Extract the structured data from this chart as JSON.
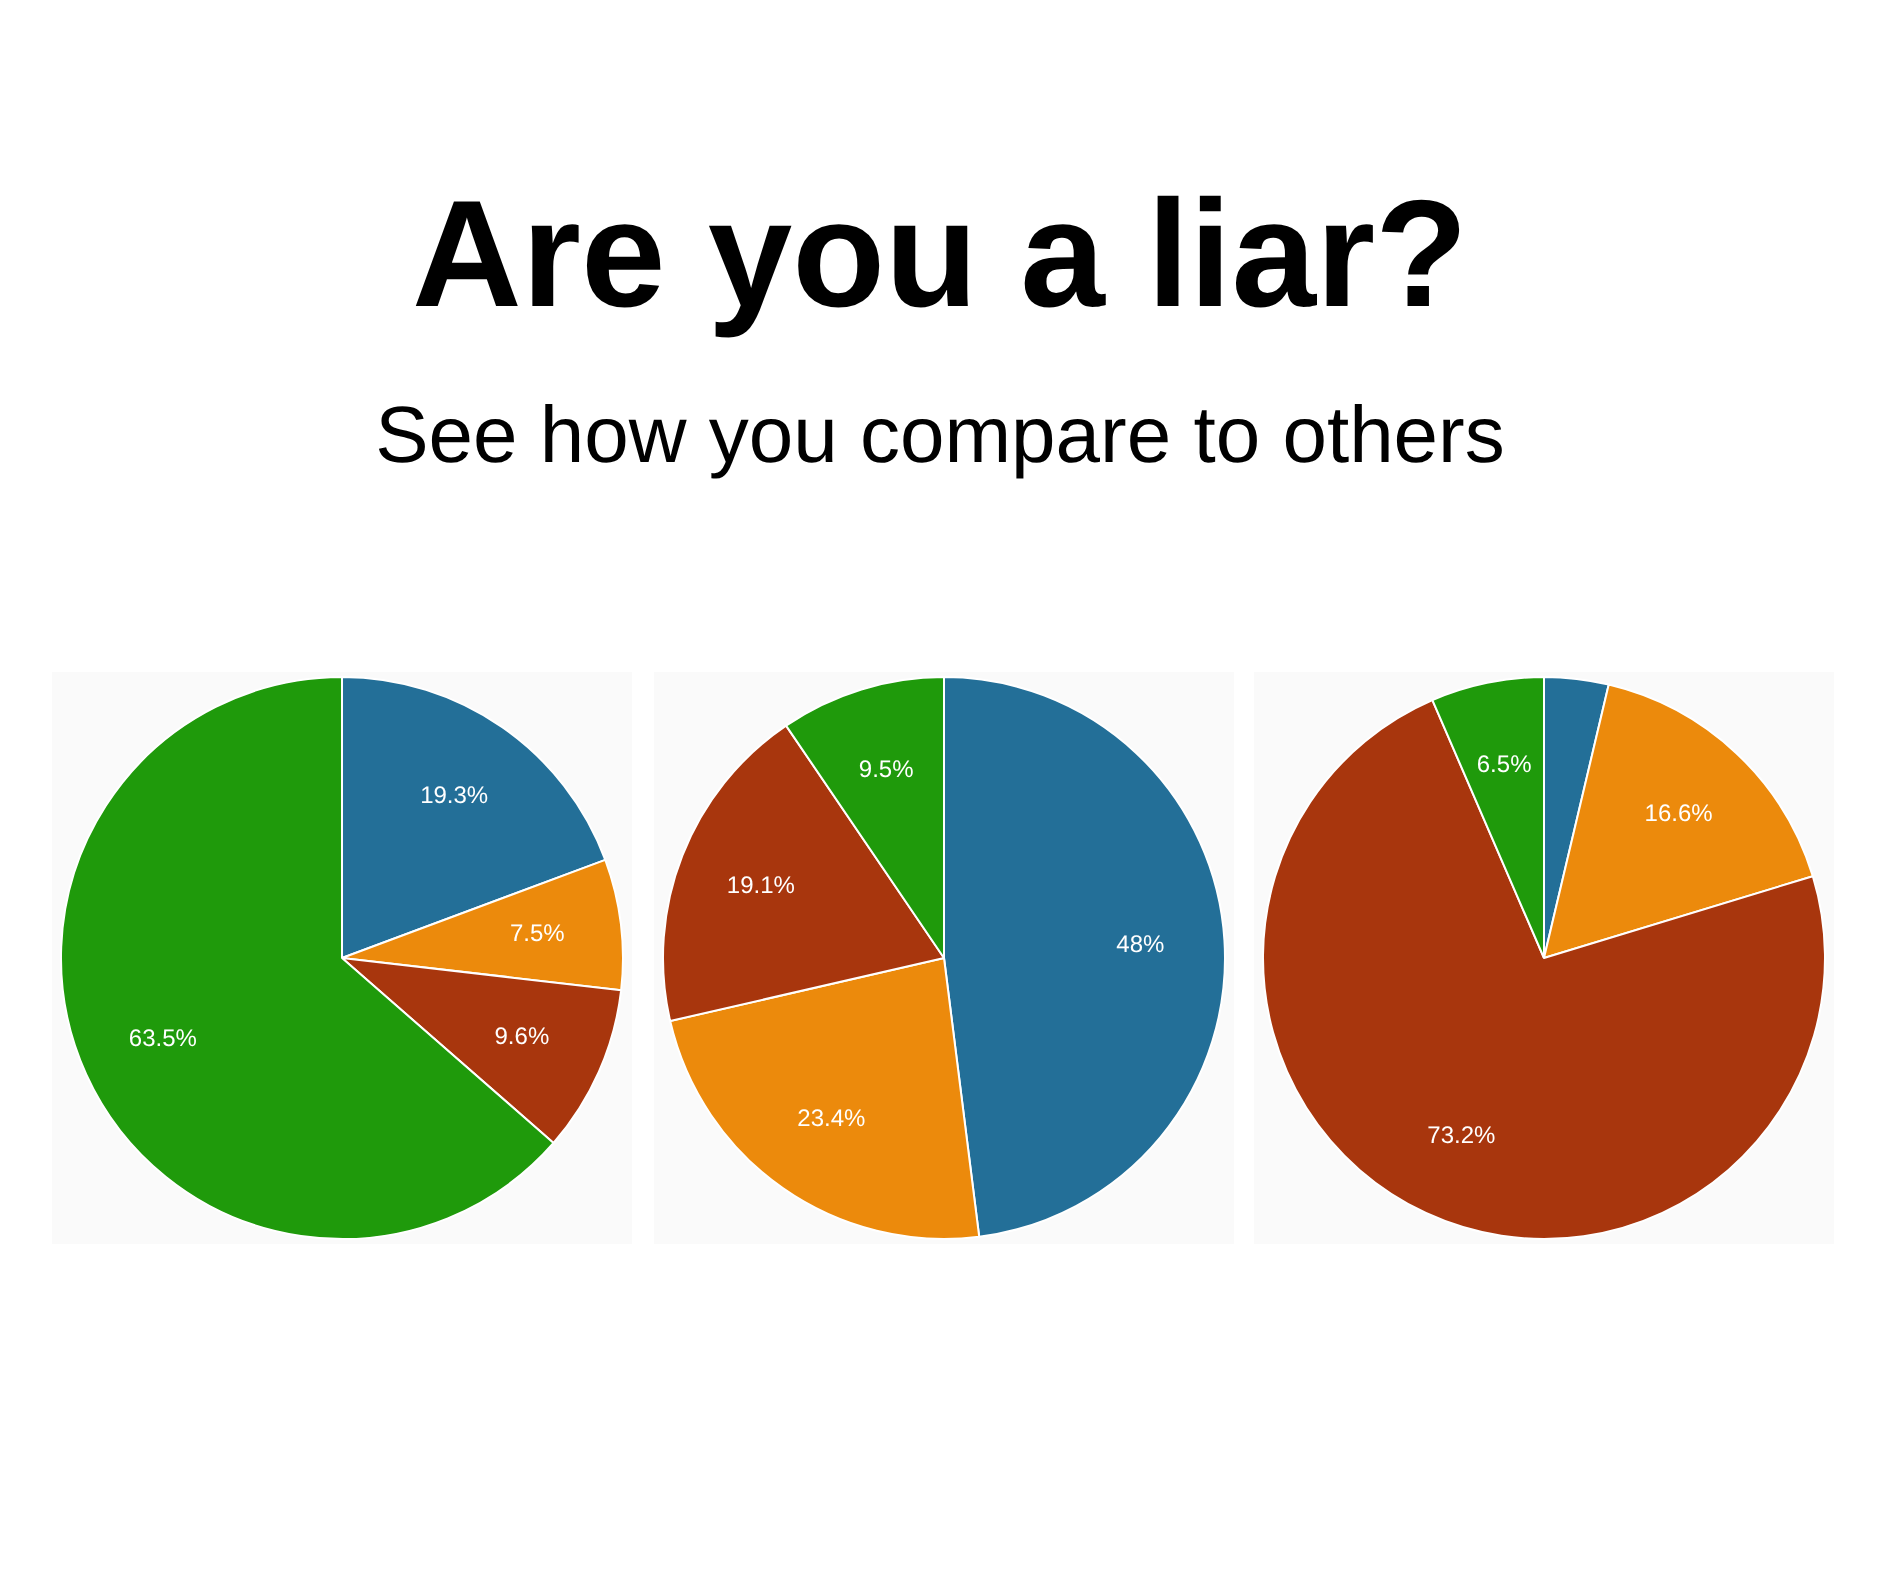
{
  "chart_data": [
    {
      "type": "pie",
      "title": "Are you a liar?",
      "subtitle": "See how you compare to others",
      "categories": [
        null,
        null,
        null,
        null
      ],
      "values": [
        19.3,
        7.5,
        9.6,
        63.5
      ],
      "colors": [
        "#236f98",
        "#ec8a0c",
        "#a8360d",
        "#1f9a0b"
      ],
      "value_labels": [
        "19.3%",
        "7.5%",
        "9.6%",
        "63.5%"
      ]
    },
    {
      "type": "pie",
      "categories": [
        null,
        null,
        null,
        null
      ],
      "values": [
        48,
        23.4,
        19.1,
        9.5
      ],
      "colors": [
        "#236f98",
        "#ec8a0c",
        "#a8360d",
        "#1f9a0b"
      ],
      "value_labels": [
        "48%",
        "23.4%",
        "19.1%",
        "9.5%"
      ]
    },
    {
      "type": "pie",
      "categories": [
        null,
        null,
        null,
        null
      ],
      "values": [
        3.7,
        16.6,
        73.2,
        6.5
      ],
      "colors": [
        "#236f98",
        "#ec8a0c",
        "#a8360d",
        "#1f9a0b"
      ],
      "value_labels": [
        null,
        "16.6%",
        "73.2%",
        "6.5%"
      ]
    }
  ]
}
